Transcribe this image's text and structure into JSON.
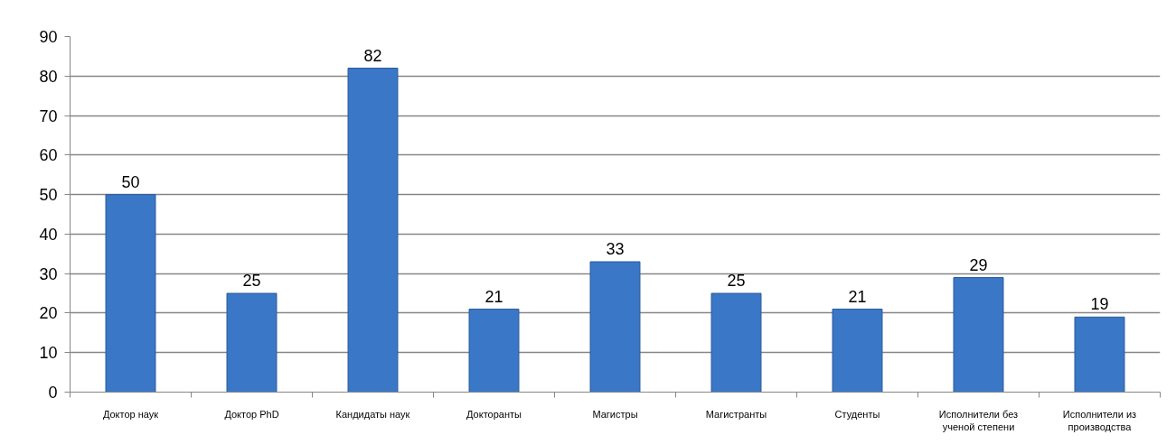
{
  "chart_data": {
    "type": "bar",
    "categories": [
      "Доктор наук",
      "Доктор PhD",
      "Кандидаты наук",
      "Докторанты",
      "Магистры",
      "Магистранты",
      "Студенты",
      "Исполнители без ученой степени",
      "Исполнители из производства"
    ],
    "values": [
      50,
      25,
      82,
      21,
      33,
      25,
      21,
      29,
      19
    ],
    "color": "#3a77c6",
    "ylim": [
      0,
      90
    ],
    "yticks": [
      0,
      10,
      20,
      30,
      40,
      50,
      60,
      70,
      80,
      90
    ],
    "grid": "y",
    "data_labels": true
  }
}
